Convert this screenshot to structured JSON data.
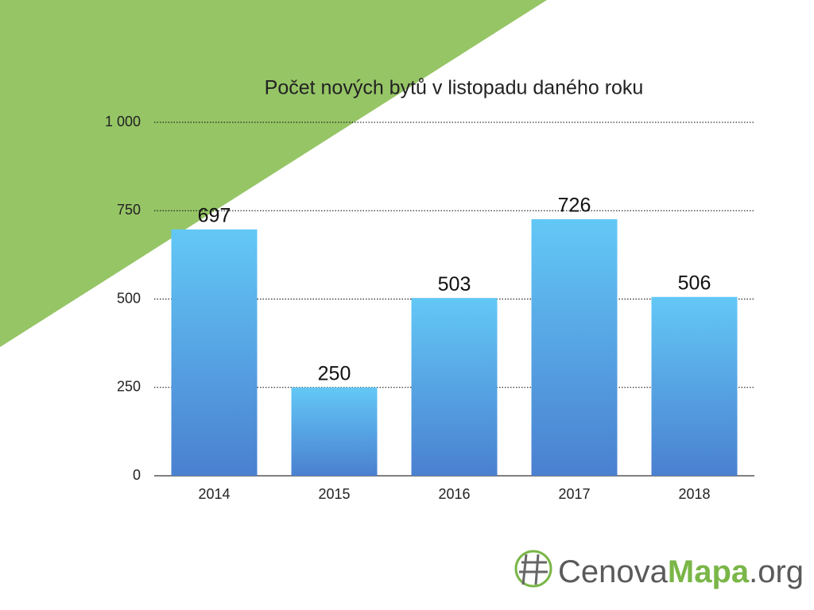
{
  "chart_data": {
    "type": "bar",
    "title": "Počet nových bytů v listopadu daného roku",
    "categories": [
      "2014",
      "2015",
      "2016",
      "2017",
      "2018"
    ],
    "values": [
      697,
      250,
      503,
      726,
      506
    ],
    "gradient": [
      "#63c8f6",
      "#4a80d0"
    ],
    "ylim": [
      0,
      1000
    ],
    "yticks": [
      0,
      250,
      500,
      750,
      {
        "value": 1000,
        "label": "1 000"
      }
    ],
    "grid": true
  },
  "logo": [
    "Cenova",
    "Mapa",
    ".org"
  ]
}
